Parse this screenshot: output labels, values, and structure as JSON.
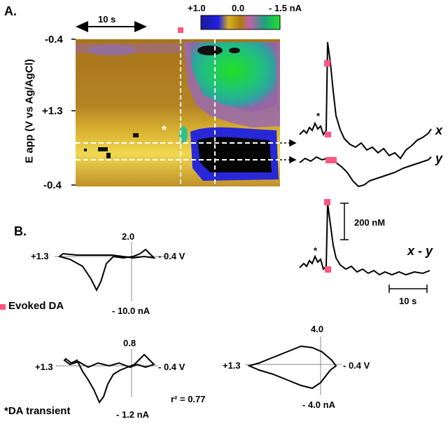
{
  "panel_a": {
    "label": "A.",
    "timescale_label": "10 s",
    "colorbar": {
      "ticks": [
        "+1.0",
        "0.0",
        "- 1.5 nA"
      ]
    },
    "y_axis": {
      "title": "E app (V vs Ag/AgCl)",
      "ticks": [
        "-0.4",
        "+1.3",
        "-0.4"
      ]
    },
    "asterisk": "*",
    "traces": {
      "x_label": "x",
      "y_label": "y",
      "xy_label": "x - y",
      "scale_conc": "200 nM",
      "scale_time": "10 s",
      "asterisk": "*"
    }
  },
  "panel_b": {
    "label": "B.",
    "legend_evoked": "Evoked DA",
    "legend_transient": "*DA transient",
    "cv1": {
      "left": "+1.3",
      "right": "- 0.4 V",
      "top": "2.0",
      "bottom": "- 10.0 nA"
    },
    "cv2": {
      "left": "+1.3",
      "right": "- 0.4 V",
      "top": "0.8",
      "bottom": "- 1.2 nA"
    },
    "cv3": {
      "left": "+1.3",
      "right": "- 0.4 V",
      "top": "4.0",
      "bottom": "- 4.0 nA"
    },
    "r_squared": "r² = 0.77"
  },
  "colors": {
    "evoked_marker": "#ff5580",
    "trace": "#000000"
  }
}
